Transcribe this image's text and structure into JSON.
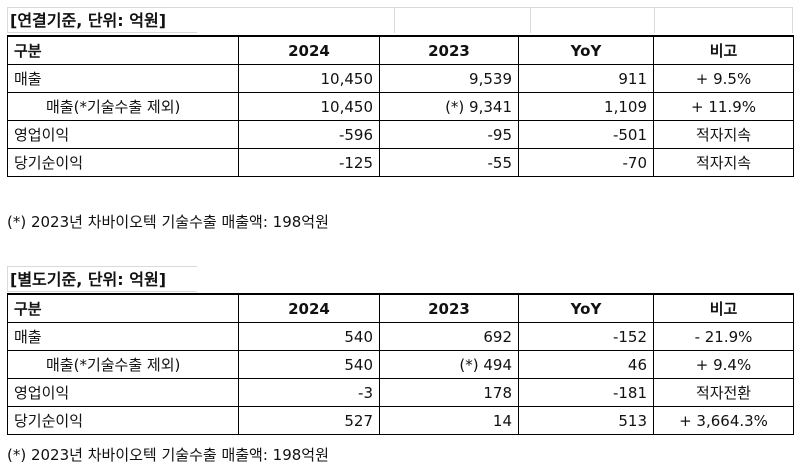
{
  "consolidated": {
    "title": "[연결기준, 단위: 억원]",
    "headers": [
      "구분",
      "2024",
      "2023",
      "YoY",
      "비고"
    ],
    "rows": [
      [
        "매출",
        "10,450",
        "9,539",
        "911",
        "+ 9.5%"
      ],
      [
        "매출(*기술수출 제외)",
        "10,450",
        "(*) 9,341",
        "1,109",
        "+ 11.9%"
      ],
      [
        "영업이익",
        "-596",
        "-95",
        "-501",
        "적자지속"
      ],
      [
        "당기순이익",
        "-125",
        "-55",
        "-70",
        "적자지속"
      ]
    ],
    "note": "(*) 2023년 차바이오텍 기술수출 매출액: 198억원"
  },
  "separate": {
    "title": "[별도기준, 단위: 억원]",
    "headers": [
      "구분",
      "2024",
      "2023",
      "YoY",
      "비고"
    ],
    "rows": [
      [
        "매출",
        "540",
        "692",
        "-152",
        "- 21.9%"
      ],
      [
        "매출(*기술수출 제외)",
        "540",
        "(*) 494",
        "46",
        "+ 9.4%"
      ],
      [
        "영업이익",
        "-3",
        "178",
        "-181",
        "적자전환"
      ],
      [
        "당기순이익",
        "527",
        "14",
        "513",
        "+ 3,664.3%"
      ]
    ],
    "note": "(*) 2023년 차바이오텍 기술수출 매출액: 198억원"
  }
}
